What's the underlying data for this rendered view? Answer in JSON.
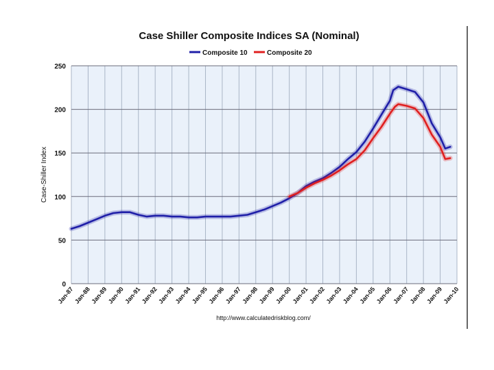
{
  "chart_data": {
    "type": "line",
    "title": "Case Shiller Composite Indices SA (Nominal)",
    "ylabel": "Case-Shiller Index",
    "xlabel": "",
    "ylim": [
      0,
      250
    ],
    "yticks": [
      0,
      50,
      100,
      150,
      200,
      250
    ],
    "xticks": [
      "Jan-87",
      "Jan-88",
      "Jan-89",
      "Jan-90",
      "Jan-91",
      "Jan-92",
      "Jan-93",
      "Jan-94",
      "Jan-95",
      "Jan-96",
      "Jan-97",
      "Jan-98",
      "Jan-99",
      "Jan-00",
      "Jan-01",
      "Jan-02",
      "Jan-03",
      "Jan-04",
      "Jan-05",
      "Jan-06",
      "Jan-07",
      "Jan-08",
      "Jan-09",
      "Jan-10"
    ],
    "x_start_year": 1987,
    "grid": true,
    "legend": "top",
    "source": "http://www.calculatedriskblog.com/",
    "series": [
      {
        "name": "Composite 10",
        "color": "#1f1fa8",
        "x": [
          1987.0,
          1987.5,
          1988.0,
          1988.5,
          1989.0,
          1989.5,
          1990.0,
          1990.5,
          1991.0,
          1991.5,
          1992.0,
          1992.5,
          1993.0,
          1993.5,
          1994.0,
          1994.5,
          1995.0,
          1995.5,
          1996.0,
          1996.5,
          1997.0,
          1997.5,
          1998.0,
          1998.5,
          1999.0,
          1999.5,
          2000.0,
          2000.5,
          2001.0,
          2001.5,
          2002.0,
          2002.5,
          2003.0,
          2003.5,
          2004.0,
          2004.5,
          2005.0,
          2005.5,
          2006.0,
          2006.2,
          2006.5,
          2007.0,
          2007.5,
          2008.0,
          2008.5,
          2009.0,
          2009.3,
          2009.6
        ],
        "values": [
          63,
          66,
          70,
          74,
          78,
          81,
          82,
          82,
          79,
          77,
          78,
          78,
          77,
          77,
          76,
          76,
          77,
          77,
          77,
          77,
          78,
          79,
          82,
          85,
          89,
          93,
          98,
          104,
          112,
          117,
          121,
          127,
          134,
          143,
          151,
          163,
          178,
          194,
          210,
          222,
          226,
          223,
          220,
          208,
          184,
          168,
          155,
          157
        ]
      },
      {
        "name": "Composite 20",
        "color": "#e01f1f",
        "x": [
          2000.0,
          2000.5,
          2001.0,
          2001.5,
          2002.0,
          2002.5,
          2003.0,
          2003.5,
          2004.0,
          2004.5,
          2005.0,
          2005.5,
          2006.0,
          2006.3,
          2006.5,
          2007.0,
          2007.5,
          2008.0,
          2008.5,
          2009.0,
          2009.3,
          2009.6
        ],
        "values": [
          100,
          104,
          110,
          115,
          119,
          124,
          130,
          137,
          143,
          153,
          167,
          180,
          195,
          203,
          206,
          204,
          201,
          190,
          171,
          157,
          143,
          144
        ]
      }
    ]
  }
}
